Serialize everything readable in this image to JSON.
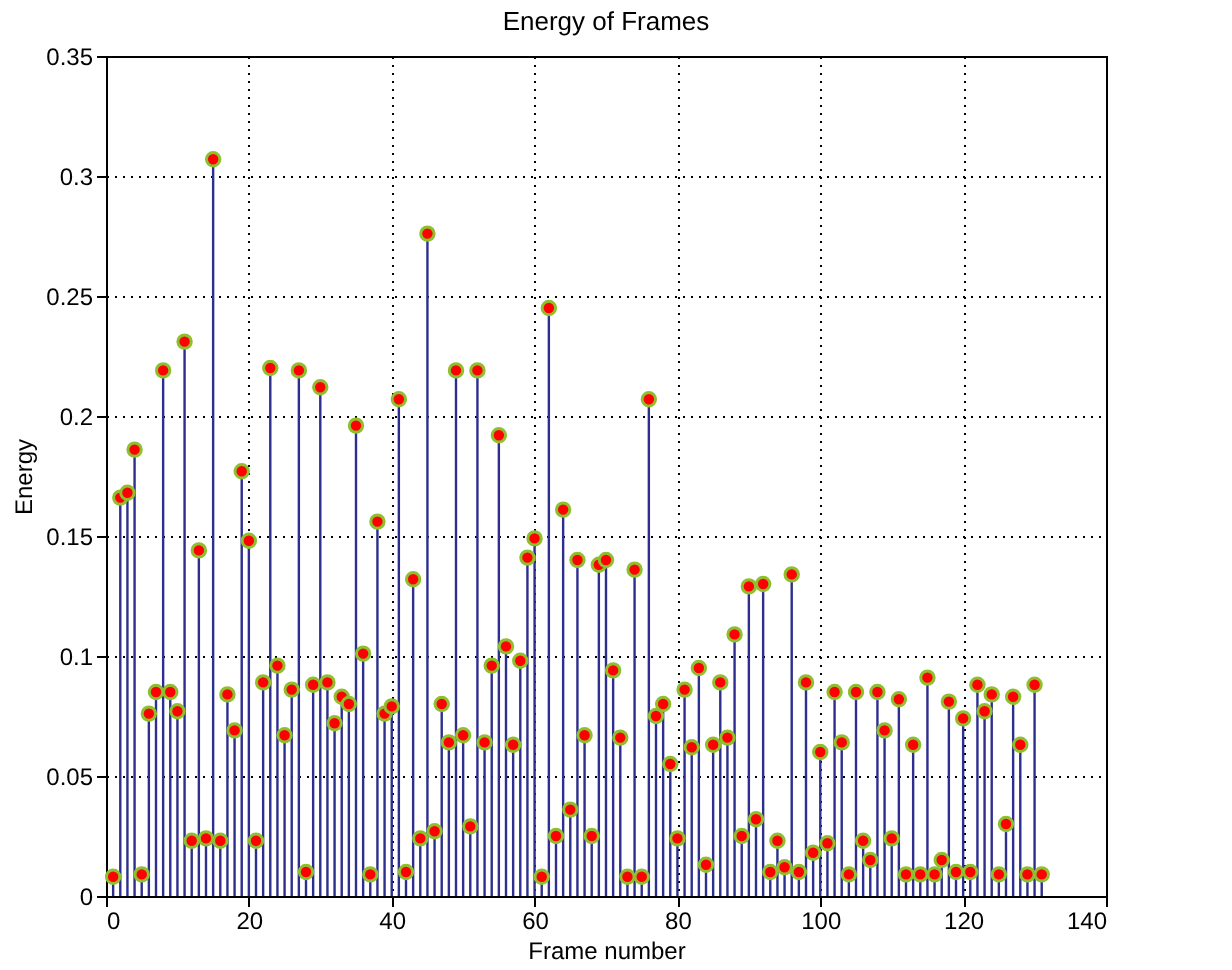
{
  "chart_data": {
    "type": "lollipop",
    "title": "Energy of Frames",
    "xlabel": "Frame number",
    "ylabel": "Energy",
    "xlim": [
      0,
      140
    ],
    "xticks": [
      0,
      20,
      40,
      60,
      80,
      100,
      120,
      140
    ],
    "ylim": [
      0,
      0.35
    ],
    "yticks": [
      0,
      0.05,
      0.1,
      0.15,
      0.2,
      0.25,
      0.3,
      0.35
    ],
    "grid": true,
    "marker": "circle",
    "series": [
      {
        "color": "#ff0000",
        "x": [
          1,
          2,
          3,
          4,
          5,
          6,
          7,
          8,
          9,
          10,
          11,
          12,
          13,
          14,
          15,
          16,
          17,
          18,
          19,
          20,
          21,
          22,
          23,
          24,
          25,
          26,
          27,
          28,
          29,
          30,
          31,
          32,
          33,
          34,
          35,
          36,
          37,
          38,
          39,
          40,
          41,
          42,
          43,
          44,
          45,
          46,
          47,
          48,
          49,
          50,
          51,
          52,
          53,
          54,
          55,
          56,
          57,
          58,
          59,
          60,
          61,
          62,
          63,
          64,
          65,
          66,
          67,
          68,
          69,
          70,
          71,
          72,
          73,
          74,
          75,
          76,
          77,
          78,
          79,
          80,
          81,
          82,
          83,
          84,
          85,
          86,
          87,
          88,
          89,
          90,
          91,
          92,
          93,
          94,
          95,
          96,
          97,
          98,
          99,
          100,
          101,
          102,
          103,
          104,
          105,
          106,
          107,
          108,
          109,
          110,
          111,
          112,
          113,
          114,
          115,
          116,
          117,
          118,
          119,
          120,
          121,
          122,
          123,
          124,
          125,
          126,
          127,
          128,
          129,
          130,
          131
        ],
        "values": [
          0.008,
          0.166,
          0.168,
          0.186,
          0.009,
          0.076,
          0.085,
          0.219,
          0.085,
          0.077,
          0.231,
          0.023,
          0.144,
          0.024,
          0.307,
          0.023,
          0.084,
          0.069,
          0.177,
          0.148,
          0.023,
          0.089,
          0.22,
          0.096,
          0.067,
          0.086,
          0.219,
          0.01,
          0.088,
          0.212,
          0.089,
          0.072,
          0.083,
          0.08,
          0.196,
          0.101,
          0.009,
          0.156,
          0.076,
          0.079,
          0.207,
          0.01,
          0.132,
          0.024,
          0.276,
          0.027,
          0.08,
          0.064,
          0.219,
          0.067,
          0.029,
          0.219,
          0.064,
          0.096,
          0.192,
          0.104,
          0.063,
          0.098,
          0.141,
          0.149,
          0.008,
          0.245,
          0.025,
          0.161,
          0.036,
          0.14,
          0.067,
          0.025,
          0.138,
          0.14,
          0.094,
          0.066,
          0.008,
          0.136,
          0.008,
          0.207,
          0.075,
          0.08,
          0.055,
          0.024,
          0.086,
          0.062,
          0.095,
          0.013,
          0.063,
          0.089,
          0.066,
          0.109,
          0.025,
          0.129,
          0.032,
          0.13,
          0.01,
          0.023,
          0.012,
          0.134,
          0.01,
          0.089,
          0.018,
          0.06,
          0.022,
          0.085,
          0.064,
          0.009,
          0.085,
          0.023,
          0.015,
          0.085,
          0.069,
          0.024,
          0.082,
          0.009,
          0.063,
          0.009,
          0.091,
          0.009,
          0.015,
          0.081,
          0.01,
          0.074,
          0.01,
          0.088,
          0.077,
          0.084,
          0.009,
          0.03,
          0.083,
          0.063,
          0.009,
          0.088,
          0.009
        ]
      }
    ]
  }
}
